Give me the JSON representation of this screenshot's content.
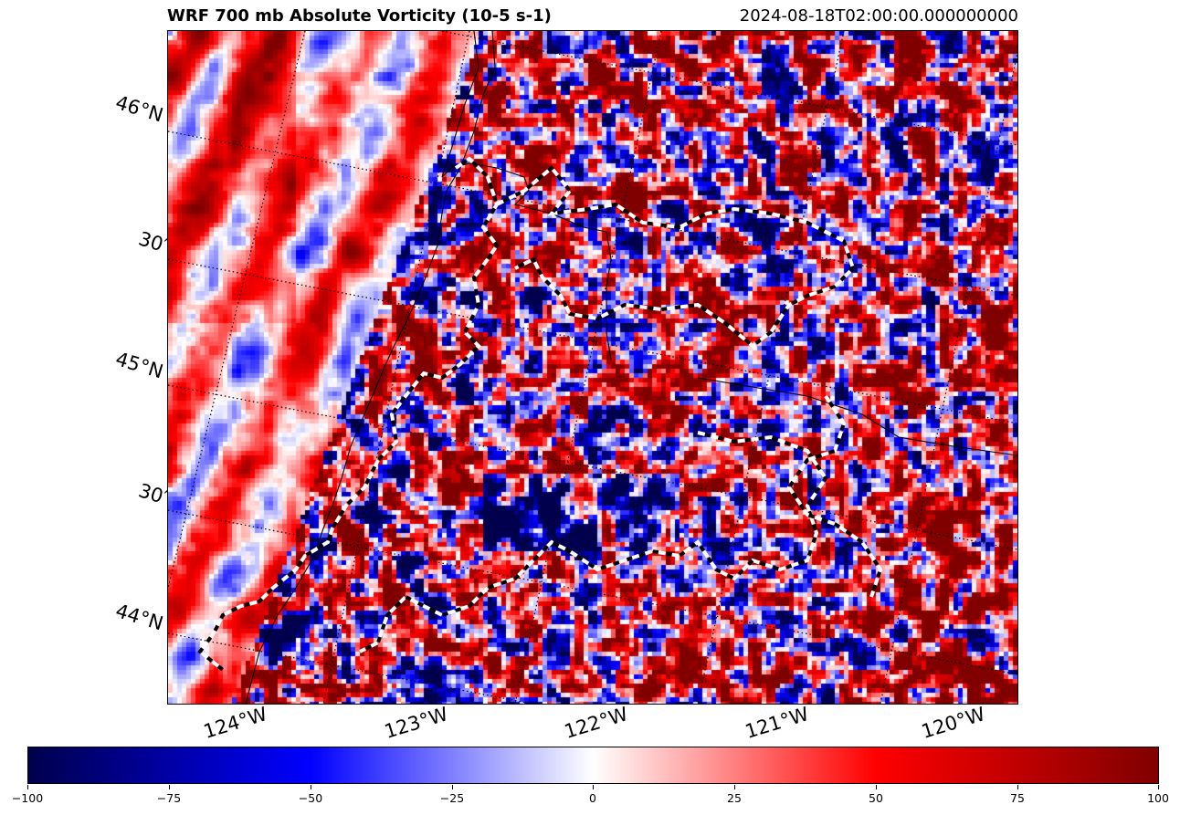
{
  "title": "WRF 700 mb Absolute Vorticity (10-5 s-1)",
  "valid_time": "2024-08-18T02:00:00.000000000",
  "lat_labels": [
    "46°N",
    "30′",
    "45°N",
    "30′",
    "44°N"
  ],
  "lon_labels": [
    "124°W",
    "123°W",
    "122°W",
    "121°W",
    "120°W"
  ],
  "colorbar": {
    "min": -100,
    "max": 100,
    "ticks": [
      "−100",
      "−75",
      "−50",
      "−25",
      "0",
      "25",
      "50",
      "75",
      "100"
    ],
    "colors": [
      "#00004c",
      "#0000ff",
      "#ffffff",
      "#ff0000",
      "#800000"
    ]
  },
  "units": "10-5 s-1"
}
